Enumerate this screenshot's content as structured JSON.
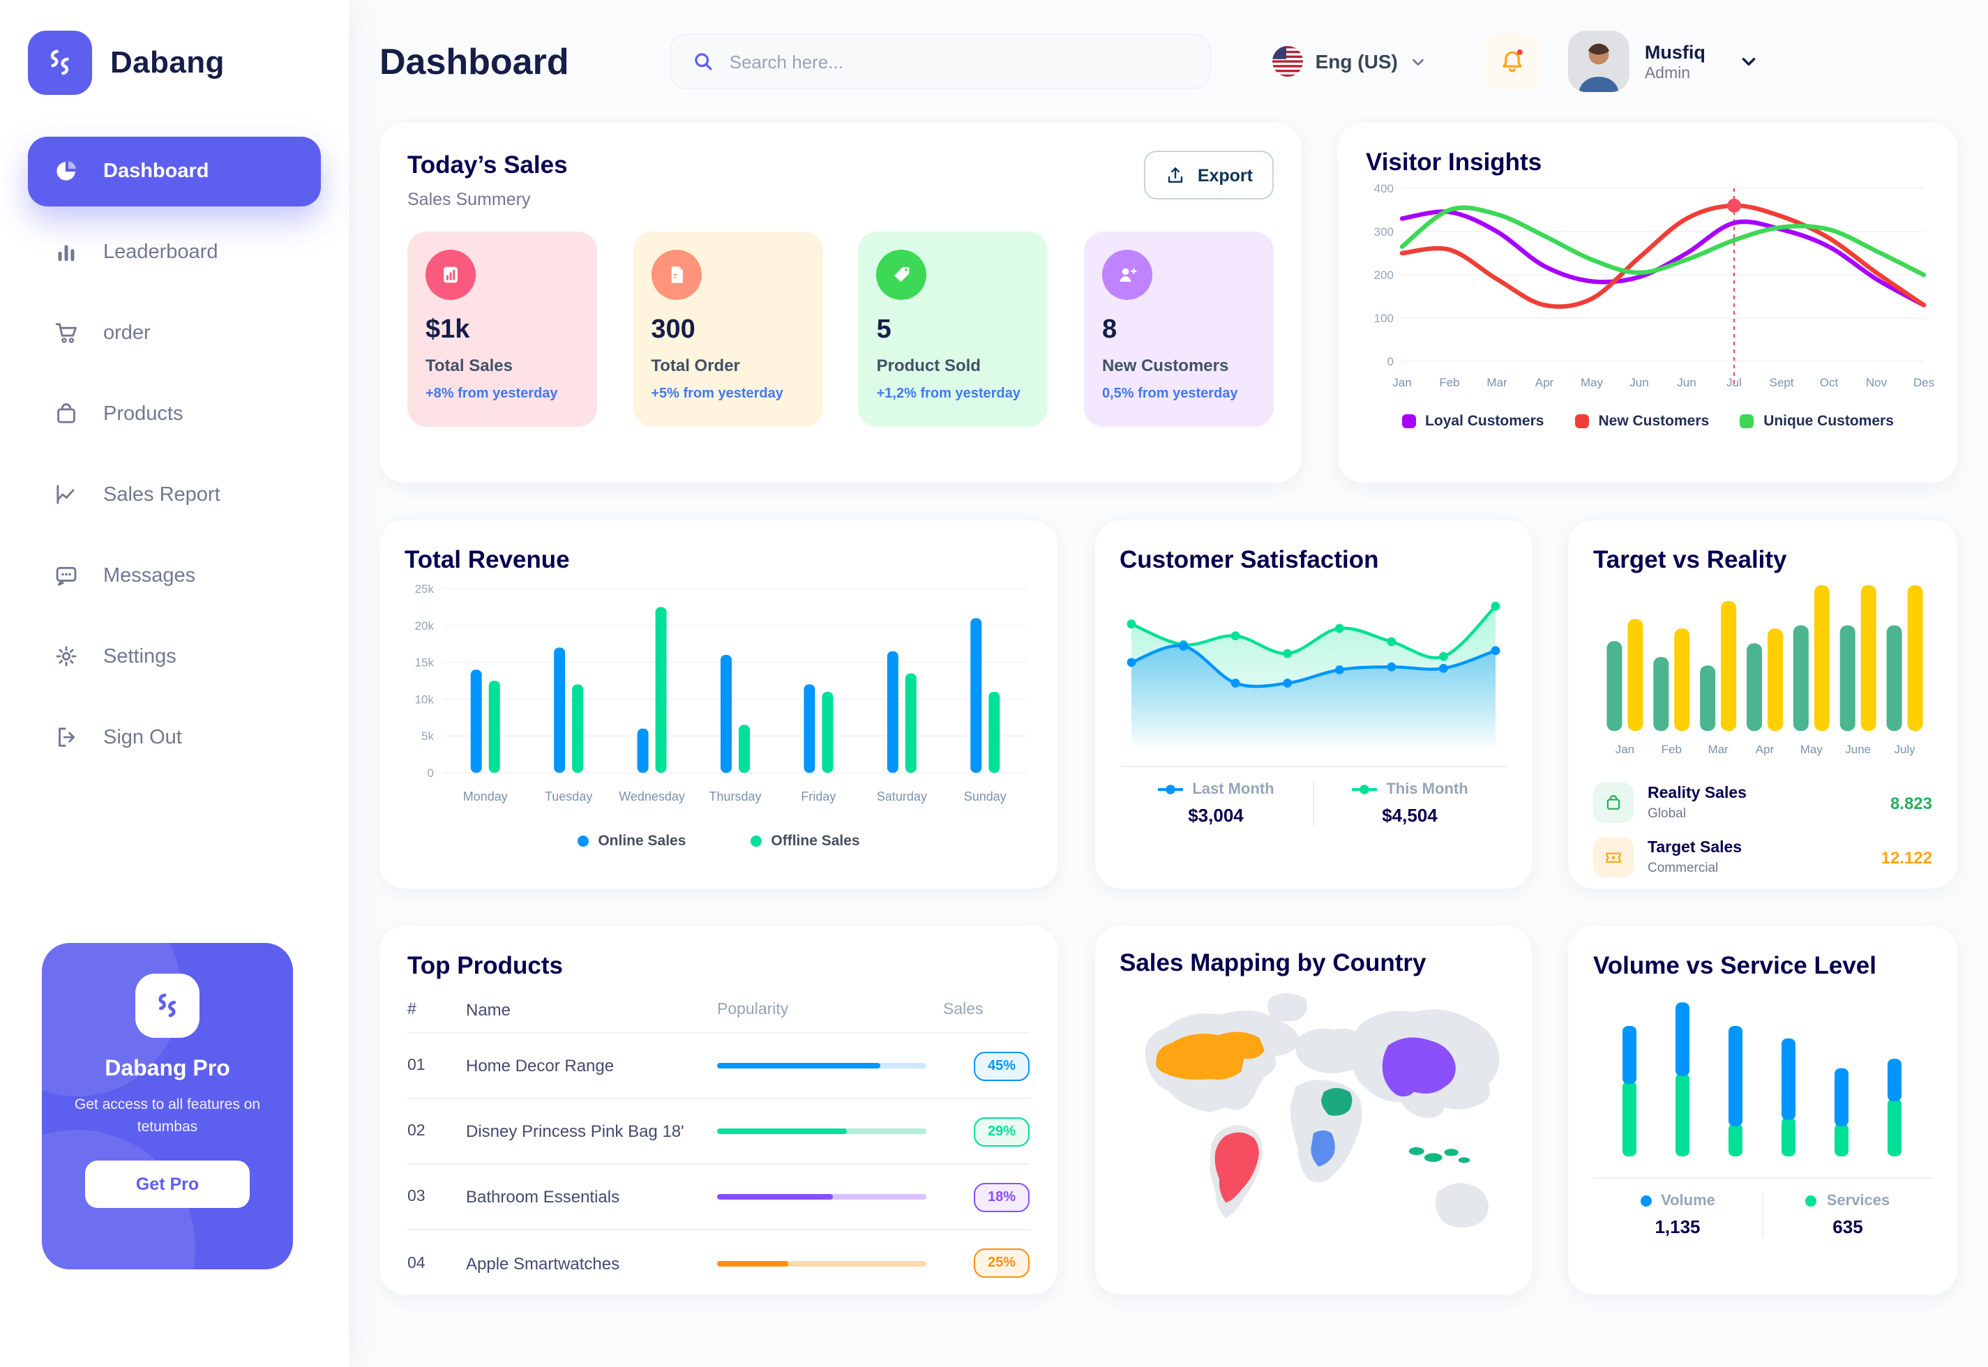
{
  "sidebar": {
    "logo_text": "Dabang",
    "items": [
      {
        "label": "Dashboard",
        "icon": "pie-chart",
        "active": true
      },
      {
        "label": "Leaderboard",
        "icon": "bar-chart",
        "active": false
      },
      {
        "label": "order",
        "icon": "cart",
        "active": false
      },
      {
        "label": "Products",
        "icon": "bag",
        "active": false
      },
      {
        "label": "Sales Report",
        "icon": "line-chart",
        "active": false
      },
      {
        "label": "Messages",
        "icon": "message",
        "active": false
      },
      {
        "label": "Settings",
        "icon": "gear",
        "active": false
      },
      {
        "label": "Sign Out",
        "icon": "sign-out",
        "active": false
      }
    ],
    "pro_card": {
      "title": "Dabang Pro",
      "subtitle": "Get access to all features on tetumbas",
      "button_label": "Get Pro"
    }
  },
  "header": {
    "title": "Dashboard",
    "search_placeholder": "Search here...",
    "language": "Eng (US)",
    "user_name": "Musfiq",
    "user_role": "Admin"
  },
  "todays_sales": {
    "title": "Today’s Sales",
    "subtitle": "Sales Summery",
    "export_label": "Export",
    "delta_color": "#4079ED",
    "stats": [
      {
        "value": "$1k",
        "label": "Total Sales",
        "delta": "+8% from yesterday",
        "bg": "#FFE2E5",
        "icon_bg": "#FA5A7D",
        "icon": "stat-chart"
      },
      {
        "value": "300",
        "label": "Total Order",
        "delta": "+5% from yesterday",
        "bg": "#FFF4DE",
        "icon_bg": "#FF947A",
        "icon": "stat-receipt"
      },
      {
        "value": "5",
        "label": "Product Sold",
        "delta": "+1,2% from yesterday",
        "bg": "#DCFCE7",
        "icon_bg": "#3CD856",
        "icon": "stat-tag"
      },
      {
        "value": "8",
        "label": "New Customers",
        "delta": "0,5% from yesterday",
        "bg": "#F3E8FF",
        "icon_bg": "#BF83FF",
        "icon": "stat-user-plus"
      }
    ]
  },
  "top_products": {
    "title": "Top Products",
    "columns": [
      "#",
      "Name",
      "Popularity",
      "Sales"
    ],
    "rows": [
      {
        "id": "01",
        "name": "Home Decor Range",
        "popularity": 78,
        "sales": "45%",
        "color": "#0095FF",
        "track": "#CFE8FF",
        "badge_bg": "#EAF6FF"
      },
      {
        "id": "02",
        "name": "Disney Princess Pink Bag 18'",
        "popularity": 62,
        "sales": "29%",
        "color": "#00E096",
        "track": "#B0F0DA",
        "badge_bg": "#EAFBF4"
      },
      {
        "id": "03",
        "name": "Bathroom Essentials",
        "popularity": 55,
        "sales": "18%",
        "color": "#884DFF",
        "track": "#D9C2FF",
        "badge_bg": "#F4EDFF"
      },
      {
        "id": "04",
        "name": "Apple Smartwatches",
        "popularity": 34,
        "sales": "25%",
        "color": "#FF8F0D",
        "track": "#FFD9A6",
        "badge_bg": "#FFF4E6"
      }
    ]
  },
  "chart_data": {
    "visitor_insights": {
      "type": "line",
      "title": "Visitor Insights",
      "x": [
        "Jan",
        "Feb",
        "Mar",
        "Apr",
        "May",
        "Jun",
        "Jun",
        "Jul",
        "Sept",
        "Oct",
        "Nov",
        "Des"
      ],
      "ylim": [
        0,
        400
      ],
      "yticks": [
        0,
        100,
        200,
        300,
        400
      ],
      "highlight_index": 7,
      "highlight_color": "#F64E60",
      "series": [
        {
          "name": "Loyal Customers",
          "color": "#A700FF",
          "values": [
            330,
            345,
            300,
            220,
            185,
            195,
            250,
            320,
            305,
            265,
            190,
            130
          ]
        },
        {
          "name": "New Customers",
          "color": "#EF3E36",
          "values": [
            250,
            258,
            190,
            130,
            145,
            240,
            330,
            360,
            335,
            285,
            205,
            130
          ]
        },
        {
          "name": "Unique Customers",
          "color": "#3CD856",
          "values": [
            265,
            350,
            340,
            290,
            235,
            205,
            235,
            280,
            310,
            305,
            255,
            200
          ]
        }
      ]
    },
    "total_revenue": {
      "type": "bar",
      "title": "Total Revenue",
      "categories": [
        "Monday",
        "Tuesday",
        "Wednesday",
        "Thursday",
        "Friday",
        "Saturday",
        "Sunday"
      ],
      "ylim": [
        0,
        25000
      ],
      "ytick_labels": [
        "0",
        "5k",
        "10k",
        "15k",
        "20k",
        "25k"
      ],
      "series": [
        {
          "name": "Online Sales",
          "color": "#0095FF",
          "values": [
            14000,
            17000,
            6000,
            16000,
            12000,
            16500,
            21000
          ]
        },
        {
          "name": "Offline Sales",
          "color": "#00E096",
          "values": [
            12500,
            12000,
            22500,
            6500,
            11000,
            13500,
            11000
          ]
        }
      ]
    },
    "customer_satisfaction": {
      "type": "area",
      "title": "Customer Satisfaction",
      "ylim": [
        0,
        100
      ],
      "series": [
        {
          "name": "Last Month",
          "color": "#0095FF",
          "total": "$3,004",
          "values": [
            52,
            63,
            38,
            38,
            47,
            49,
            48,
            60
          ]
        },
        {
          "name": "This Month",
          "color": "#00E096",
          "total": "$4,504",
          "values": [
            78,
            64,
            70,
            58,
            75,
            66,
            56,
            90
          ]
        }
      ]
    },
    "target_vs_reality": {
      "type": "bar",
      "title": "Target vs Reality",
      "categories": [
        "Jan",
        "Feb",
        "Mar",
        "Apr",
        "May",
        "June",
        "July"
      ],
      "ylim": [
        0,
        14
      ],
      "series": [
        {
          "name": "Reality Sales",
          "subtitle": "Global",
          "color": "#4AB58E",
          "icon_bg": "#E8F7F0",
          "value_label": "8.823",
          "value_color": "#27AE60",
          "values": [
            8.5,
            7,
            6.2,
            8.3,
            10,
            10,
            10
          ]
        },
        {
          "name": "Target Sales",
          "subtitle": "Commercial",
          "color": "#FFCF00",
          "icon_bg": "#FFF3E0",
          "value_label": "12.122",
          "value_color": "#FFA412",
          "values": [
            10.6,
            9.7,
            12.3,
            9.7,
            13.8,
            13.8,
            13.8
          ]
        }
      ]
    },
    "sales_mapping": {
      "type": "map",
      "title": "Sales Mapping by Country",
      "countries": [
        {
          "name": "United States",
          "color": "#FFA412"
        },
        {
          "name": "Brazil",
          "color": "#F64E60"
        },
        {
          "name": "DR Congo",
          "color": "#5A8DEE"
        },
        {
          "name": "Saudi Arabia",
          "color": "#1BA97F"
        },
        {
          "name": "China",
          "color": "#8950FC"
        },
        {
          "name": "Indonesia",
          "color": "#10B981"
        }
      ],
      "land_color": "#E4E7EB"
    },
    "volume_service": {
      "type": "stacked-bar",
      "title": "Volume vs Service Level",
      "series": [
        {
          "name": "Volume",
          "color": "#0095FF",
          "total": "1,135",
          "values": [
            37,
            47,
            64,
            52,
            37,
            27
          ]
        },
        {
          "name": "Services",
          "color": "#00E096",
          "total": "635",
          "values": [
            48,
            53,
            21,
            25,
            21,
            37
          ]
        }
      ]
    }
  }
}
